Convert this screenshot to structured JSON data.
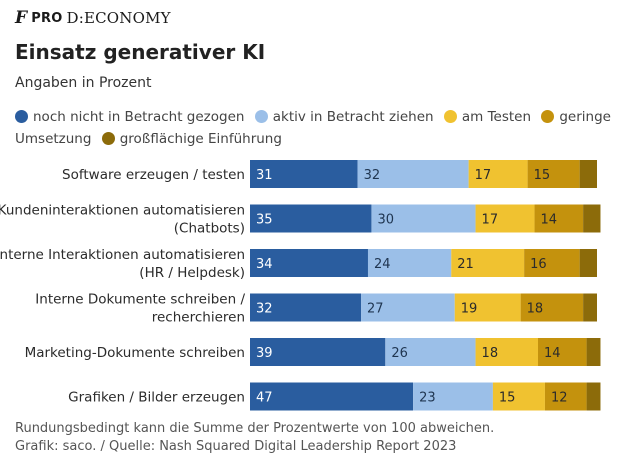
{
  "brand": {
    "logo_letter": "F",
    "pro": "PRO",
    "section": "D:ECONOMY"
  },
  "title": "Einsatz generativer KI",
  "subtitle": "Angaben in Prozent",
  "colors": [
    "#2a5d9f",
    "#9bbfe8",
    "#f0c230",
    "#c4920d",
    "#8c6b0a"
  ],
  "chart_data": {
    "type": "bar",
    "orientation": "horizontal",
    "stacked": true,
    "categories": [
      [
        "Software erzeugen / testen"
      ],
      [
        "Kundeninteraktionen automatisieren",
        "(Chatbots)"
      ],
      [
        "Interne Interaktionen automatisieren",
        "(HR / Helpdesk)"
      ],
      [
        "Interne Dokumente schreiben /",
        "recherchieren"
      ],
      [
        "Marketing-Dokumente schreiben"
      ],
      [
        "Grafiken / Bilder erzeugen"
      ]
    ],
    "series": [
      {
        "name": "noch nicht in Betracht gezogen",
        "values": [
          31,
          35,
          34,
          32,
          39,
          47
        ],
        "labels": [
          "31",
          "35",
          "34",
          "32",
          "39",
          "47"
        ]
      },
      {
        "name": "aktiv in Betracht ziehen",
        "values": [
          32,
          30,
          24,
          27,
          26,
          23
        ],
        "labels": [
          "32",
          "30",
          "24",
          "27",
          "26",
          "23"
        ]
      },
      {
        "name": "am Testen",
        "values": [
          17,
          17,
          21,
          19,
          18,
          15
        ],
        "labels": [
          "17",
          "17",
          "21",
          "19",
          "18",
          "15"
        ]
      },
      {
        "name": "geringe Umsetzung",
        "values": [
          15,
          14,
          16,
          18,
          14,
          12
        ],
        "labels": [
          "15",
          "14",
          "16",
          "18",
          "14",
          "12"
        ]
      },
      {
        "name": "großflächige Einführung",
        "values": [
          5,
          5,
          5,
          4,
          4,
          4
        ],
        "labels": [
          "",
          "",
          "",
          "",
          "",
          ""
        ]
      }
    ],
    "xlim": [
      0,
      100
    ]
  },
  "footnote": "Rundungsbedingt kann die Summe der Prozentwerte von 100 abweichen.",
  "source": "Grafik: saco. / Quelle: Nash Squared Digital Leadership Report 2023"
}
